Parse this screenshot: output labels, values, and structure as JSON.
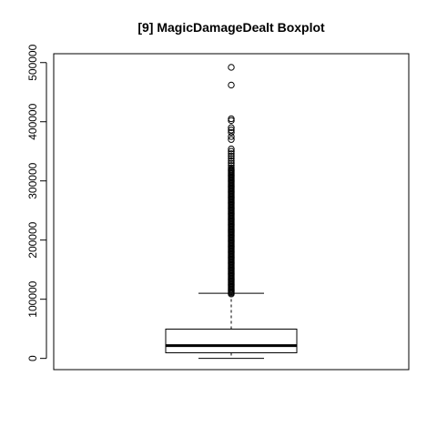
{
  "chart_data": {
    "type": "boxplot",
    "title": "[9] MagicDamageDealt Boxplot",
    "xlabel": "",
    "ylabel": "",
    "ylim": [
      -19000,
      515000
    ],
    "y_ticks": [
      0,
      100000,
      200000,
      300000,
      400000,
      500000
    ],
    "y_tick_labels": [
      "0",
      "100000",
      "200000",
      "300000",
      "400000",
      "500000"
    ],
    "grid": false,
    "box": {
      "min": 0,
      "q1": 9500,
      "median": 21500,
      "q3": 49500,
      "whisker_high": 110000
    },
    "outliers": {
      "dense_band": [
        109000,
        320000
      ],
      "points": [
        322000,
        326000,
        330000,
        334000,
        338000,
        342000,
        346000,
        350000,
        354000,
        370000,
        375000,
        382000,
        386000,
        390000,
        402000,
        405000,
        462000,
        492000
      ]
    }
  }
}
